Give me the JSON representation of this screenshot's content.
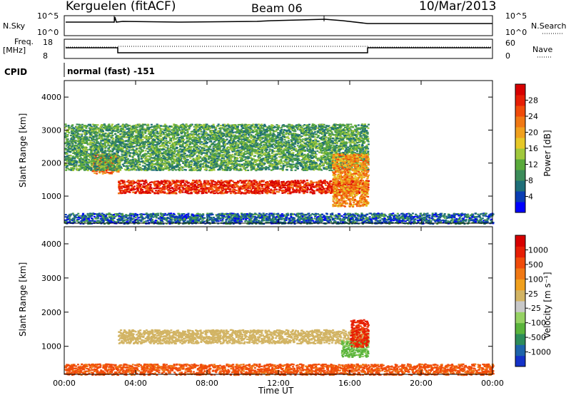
{
  "header": {
    "station": "Kerguelen (fitACF)",
    "beam": "Beam 06",
    "date": "10/Mar/2013"
  },
  "top_panels": {
    "nsky_label": "N.Sky",
    "nsky_ticks": [
      "10^5",
      "10^0"
    ],
    "nsearch_label": "N.Search",
    "nsearch_ticks": [
      "10^5",
      "10^0"
    ],
    "freq_label_1": "Freq.",
    "freq_label_2": "[MHz]",
    "freq_ticks": [
      "18",
      "8"
    ],
    "nave_label": "Nave",
    "nave_ticks": [
      "60",
      "0"
    ],
    "cpid_label": "CPID",
    "cpid_value": "normal (fast) -151"
  },
  "colorbars": {
    "power": {
      "label": "Power [dB]",
      "ticks": [
        "28",
        "24",
        "20",
        "16",
        "12",
        "8",
        "4"
      ],
      "colors": [
        "#0000ff",
        "#0a3db4",
        "#1e6e78",
        "#3c8c5a",
        "#5aaa3c",
        "#a0c83c",
        "#e6c828",
        "#f0a01e",
        "#f07814",
        "#f04b0a",
        "#e61e05",
        "#d70000"
      ]
    },
    "velocity": {
      "label": "Velocity [m s⁻¹]",
      "ticks": [
        "1000",
        "500",
        "100",
        "25",
        "-25",
        "-100",
        "-500",
        "-1000"
      ],
      "colors": [
        "#1432c8",
        "#1e64aa",
        "#2d8c5a",
        "#5ab43c",
        "#96d264",
        "#c8c8c8",
        "#d2b464",
        "#f0a01e",
        "#f07814",
        "#f04b0a",
        "#e61e05",
        "#d70000"
      ]
    }
  },
  "chart_data": [
    {
      "type": "heatmap",
      "title": "Power",
      "ylabel": "Slant Range [km]",
      "y_ticks": [
        "4000",
        "3000",
        "2000",
        "1000"
      ],
      "ylim": [
        180,
        4500
      ],
      "xlim": [
        "00:00",
        "24:00"
      ],
      "colorbar_label": "Power [dB]",
      "colorbar_range": [
        0,
        30
      ],
      "features": [
        {
          "name": "main echo band",
          "start": "03:00",
          "end": "17:00",
          "range_km": [
            1100,
            1500
          ],
          "power_db": 26
        },
        {
          "name": "pre-03UT echo",
          "start": "01:30",
          "end": "03:00",
          "range_km": [
            1700,
            2300
          ],
          "power_db": 22
        },
        {
          "name": "upper sporadic echoes",
          "start": "00:00",
          "end": "17:00",
          "range_km": [
            1800,
            3200
          ],
          "power_db": 10
        },
        {
          "name": "late afternoon return",
          "start": "15:00",
          "end": "17:00",
          "range_km": [
            700,
            2300
          ],
          "power_db": 20
        },
        {
          "name": "near-range clutter",
          "start": "00:00",
          "end": "24:00",
          "range_km": [
            180,
            500
          ],
          "power_db": 6
        }
      ]
    },
    {
      "type": "heatmap",
      "title": "Velocity",
      "ylabel": "Slant Range [km]",
      "y_ticks": [
        "4000",
        "3000",
        "2000",
        "1000"
      ],
      "ylim": [
        180,
        4500
      ],
      "xlim": [
        "00:00",
        "24:00"
      ],
      "xlabel": "Time UT",
      "x_ticks": [
        "00:00",
        "04:00",
        "08:00",
        "12:00",
        "16:00",
        "20:00",
        "00:00"
      ],
      "colorbar_label": "Velocity [m s⁻¹]",
      "colorbar_range": [
        -1000,
        1000
      ],
      "features": [
        {
          "name": "ground scatter band",
          "start": "03:00",
          "end": "17:00",
          "range_km": [
            1100,
            1500
          ],
          "velocity": 0
        },
        {
          "name": "evening positive flow",
          "start": "15:30",
          "end": "17:00",
          "range_km": [
            700,
            1200
          ],
          "velocity": 150
        },
        {
          "name": "evening negative flow",
          "start": "16:00",
          "end": "17:00",
          "range_km": [
            1000,
            1800
          ],
          "velocity": -300
        },
        {
          "name": "near-range clutter",
          "start": "00:00",
          "end": "24:00",
          "range_km": [
            180,
            500
          ],
          "velocity": -150
        }
      ]
    },
    {
      "type": "line",
      "title": "N.Sky",
      "x": [
        "00:00",
        "03:00",
        "17:00",
        "24:00"
      ],
      "series": [
        {
          "values": [
            100000,
            100000,
            100000,
            100000
          ]
        }
      ]
    },
    {
      "type": "line",
      "title": "Freq.",
      "x": [
        "00:00",
        "03:00",
        "17:00",
        "24:00"
      ],
      "series": [
        {
          "values": [
            12,
            10,
            12,
            12
          ]
        }
      ]
    }
  ],
  "axes": {
    "x_ticks": [
      "00:00",
      "04:00",
      "08:00",
      "12:00",
      "16:00",
      "20:00",
      "00:00"
    ],
    "xlabel": "Time UT",
    "range_ticks": [
      "4000",
      "3000",
      "2000",
      "1000"
    ],
    "range_label": "Slant Range [km]"
  }
}
